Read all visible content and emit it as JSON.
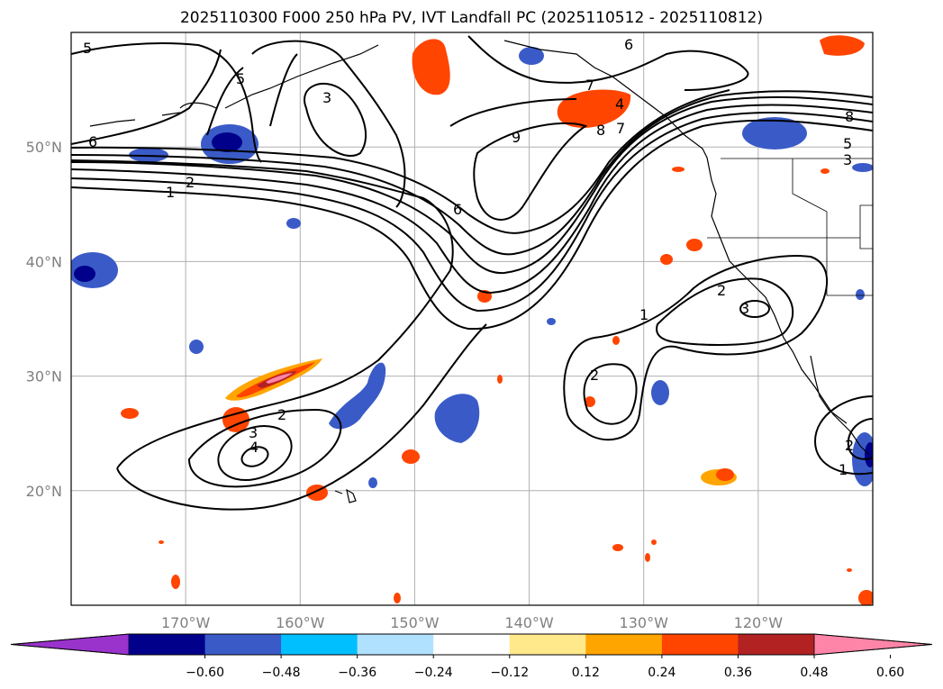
{
  "title": "2025110300 F000 250 hPa PV, IVT Landfall PC (2025110512 - 2025110812)",
  "map": {
    "lon_range": [
      -180,
      -110
    ],
    "lat_range": [
      10,
      60
    ],
    "lat_ticks": [
      {
        "lat": 50,
        "label": "50°N"
      },
      {
        "lat": 40,
        "label": "40°N"
      },
      {
        "lat": 30,
        "label": "30°N"
      },
      {
        "lat": 20,
        "label": "20°N"
      }
    ],
    "lon_ticks": [
      {
        "lon": -170,
        "label": "170°W"
      },
      {
        "lon": -160,
        "label": "160°W"
      },
      {
        "lon": -150,
        "label": "150°W"
      },
      {
        "lon": -140,
        "label": "140°W"
      },
      {
        "lon": -130,
        "label": "130°W"
      },
      {
        "lon": -120,
        "label": "120°W"
      }
    ]
  },
  "contour_labels": [
    "5",
    "5",
    "3",
    "6",
    "9",
    "6",
    "7",
    "8",
    "1",
    "2",
    "1",
    "2",
    "2",
    "3",
    "2",
    "3",
    "4",
    "1",
    "2",
    "6",
    "8",
    "5",
    "3",
    "4",
    "7"
  ],
  "colorbar": {
    "colors": [
      "#9933cc",
      "#00008b",
      "#3a5bc7",
      "#00bfff",
      "#b0e2ff",
      "#ffffff",
      "#ffe98a",
      "#ffa500",
      "#ff4500",
      "#b22222",
      "#ff85a8"
    ],
    "tick_labels": [
      "−0.60",
      "−0.48",
      "−0.36",
      "−0.24",
      "−0.12",
      "0.12",
      "0.24",
      "0.36",
      "0.48",
      "0.60"
    ]
  }
}
